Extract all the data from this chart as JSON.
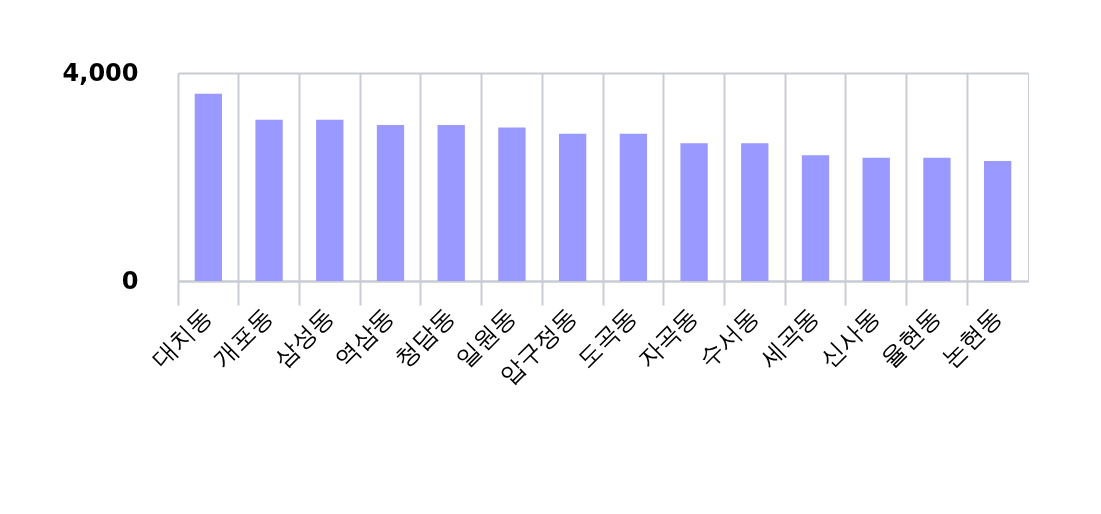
{
  "chart_data": {
    "type": "bar",
    "categories": [
      "대치동",
      "개포동",
      "삼성동",
      "역삼동",
      "청담동",
      "일원동",
      "압구정동",
      "도곡동",
      "자곡동",
      "수서동",
      "세곡동",
      "신사동",
      "율현동",
      "논현동"
    ],
    "values": [
      3600,
      3100,
      3100,
      3000,
      3000,
      2950,
      2830,
      2830,
      2650,
      2650,
      2420,
      2370,
      2370,
      2310
    ],
    "color": "#9999ff",
    "ylim": [
      0,
      4000
    ],
    "yticks": [
      0,
      {
        "value": 4000,
        "label": "4,000"
      }
    ],
    "grid": true
  }
}
